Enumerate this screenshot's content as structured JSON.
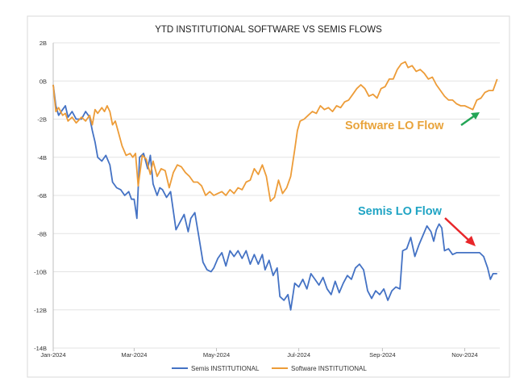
{
  "chart_data": {
    "type": "line",
    "title": "YTD INSTITUTIONAL SOFTWARE VS SEMIS FLOWS",
    "xlabel": "",
    "ylabel": "",
    "x_ticks": [
      "Jan-2024",
      "Mar-2024",
      "May-2024",
      "Jul-2024",
      "Sep-2024",
      "Nov-2024"
    ],
    "y_ticks": [
      "2B",
      "0B",
      "-2B",
      "-4B",
      "-6B",
      "-8B",
      "-10B",
      "-12B",
      "-14B"
    ],
    "ylim": [
      -14,
      2
    ],
    "xlim": [
      "2024-01-01",
      "2024-11-27"
    ],
    "grid": "horizontal",
    "legend_position": "bottom",
    "colors": {
      "semis": "#4472c4",
      "software": "#ed9c38",
      "software_label": "#e8a33b",
      "semis_label": "#20a4c4",
      "red_arrow": "#e8262a",
      "green_arrow": "#23a556"
    },
    "series": [
      {
        "name": "Semis INSTITUTIONAL",
        "key": "semis",
        "points": [
          [
            "2024-01-01",
            -0.2
          ],
          [
            "2024-01-03",
            -1.3
          ],
          [
            "2024-01-05",
            -1.8
          ],
          [
            "2024-01-08",
            -1.5
          ],
          [
            "2024-01-10",
            -1.3
          ],
          [
            "2024-01-12",
            -1.9
          ],
          [
            "2024-01-15",
            -1.6
          ],
          [
            "2024-01-18",
            -2.0
          ],
          [
            "2024-01-22",
            -2.0
          ],
          [
            "2024-01-25",
            -1.6
          ],
          [
            "2024-01-28",
            -1.9
          ],
          [
            "2024-01-30",
            -2.6
          ],
          [
            "2024-02-01",
            -3.2
          ],
          [
            "2024-02-03",
            -4.0
          ],
          [
            "2024-02-06",
            -4.2
          ],
          [
            "2024-02-09",
            -3.9
          ],
          [
            "2024-02-12",
            -4.4
          ],
          [
            "2024-02-14",
            -5.3
          ],
          [
            "2024-02-17",
            -5.6
          ],
          [
            "2024-02-20",
            -5.7
          ],
          [
            "2024-02-23",
            -6.0
          ],
          [
            "2024-02-26",
            -5.8
          ],
          [
            "2024-02-28",
            -6.2
          ],
          [
            "2024-03-01",
            -6.2
          ],
          [
            "2024-03-03",
            -7.2
          ],
          [
            "2024-03-05",
            -4.0
          ],
          [
            "2024-03-08",
            -3.8
          ],
          [
            "2024-03-11",
            -4.6
          ],
          [
            "2024-03-13",
            -3.9
          ],
          [
            "2024-03-15",
            -5.4
          ],
          [
            "2024-03-18",
            -6.0
          ],
          [
            "2024-03-20",
            -5.6
          ],
          [
            "2024-03-22",
            -5.7
          ],
          [
            "2024-03-25",
            -6.1
          ],
          [
            "2024-03-28",
            -5.8
          ],
          [
            "2024-04-01",
            -7.8
          ],
          [
            "2024-04-04",
            -7.4
          ],
          [
            "2024-04-07",
            -7.0
          ],
          [
            "2024-04-10",
            -7.9
          ],
          [
            "2024-04-12",
            -7.2
          ],
          [
            "2024-04-15",
            -6.9
          ],
          [
            "2024-04-18",
            -8.2
          ],
          [
            "2024-04-21",
            -9.5
          ],
          [
            "2024-04-24",
            -9.9
          ],
          [
            "2024-04-27",
            -10.0
          ],
          [
            "2024-04-29",
            -9.8
          ],
          [
            "2024-05-02",
            -9.3
          ],
          [
            "2024-05-05",
            -9.0
          ],
          [
            "2024-05-08",
            -9.7
          ],
          [
            "2024-05-11",
            -8.9
          ],
          [
            "2024-05-14",
            -9.2
          ],
          [
            "2024-05-17",
            -8.9
          ],
          [
            "2024-05-20",
            -9.3
          ],
          [
            "2024-05-23",
            -8.9
          ],
          [
            "2024-05-26",
            -9.6
          ],
          [
            "2024-05-29",
            -9.1
          ],
          [
            "2024-06-01",
            -9.6
          ],
          [
            "2024-06-04",
            -9.1
          ],
          [
            "2024-06-06",
            -9.9
          ],
          [
            "2024-06-09",
            -9.4
          ],
          [
            "2024-06-12",
            -10.2
          ],
          [
            "2024-06-15",
            -9.8
          ],
          [
            "2024-06-17",
            -11.3
          ],
          [
            "2024-06-20",
            -11.5
          ],
          [
            "2024-06-23",
            -11.2
          ],
          [
            "2024-06-25",
            -12.0
          ],
          [
            "2024-06-28",
            -10.6
          ],
          [
            "2024-07-01",
            -10.8
          ],
          [
            "2024-07-04",
            -10.4
          ],
          [
            "2024-07-07",
            -10.9
          ],
          [
            "2024-07-10",
            -10.1
          ],
          [
            "2024-07-13",
            -10.4
          ],
          [
            "2024-07-16",
            -10.7
          ],
          [
            "2024-07-19",
            -10.3
          ],
          [
            "2024-07-22",
            -10.9
          ],
          [
            "2024-07-25",
            -11.2
          ],
          [
            "2024-07-28",
            -10.5
          ],
          [
            "2024-07-31",
            -11.1
          ],
          [
            "2024-08-03",
            -10.6
          ],
          [
            "2024-08-06",
            -10.2
          ],
          [
            "2024-08-09",
            -10.4
          ],
          [
            "2024-08-12",
            -9.8
          ],
          [
            "2024-08-15",
            -9.6
          ],
          [
            "2024-08-18",
            -9.9
          ],
          [
            "2024-08-21",
            -11.0
          ],
          [
            "2024-08-24",
            -11.4
          ],
          [
            "2024-08-27",
            -11.0
          ],
          [
            "2024-08-30",
            -11.2
          ],
          [
            "2024-09-02",
            -10.9
          ],
          [
            "2024-09-05",
            -11.5
          ],
          [
            "2024-09-08",
            -11.0
          ],
          [
            "2024-09-11",
            -10.8
          ],
          [
            "2024-09-14",
            -10.9
          ],
          [
            "2024-09-16",
            -8.9
          ],
          [
            "2024-09-19",
            -8.8
          ],
          [
            "2024-09-22",
            -8.2
          ],
          [
            "2024-09-25",
            -9.2
          ],
          [
            "2024-09-28",
            -8.6
          ],
          [
            "2024-10-01",
            -8.1
          ],
          [
            "2024-10-04",
            -7.6
          ],
          [
            "2024-10-07",
            -7.9
          ],
          [
            "2024-10-09",
            -8.4
          ],
          [
            "2024-10-11",
            -7.8
          ],
          [
            "2024-10-13",
            -7.5
          ],
          [
            "2024-10-15",
            -7.7
          ],
          [
            "2024-10-17",
            -8.9
          ],
          [
            "2024-10-20",
            -8.8
          ],
          [
            "2024-10-23",
            -9.1
          ],
          [
            "2024-10-26",
            -9.0
          ],
          [
            "2024-10-30",
            -9.0
          ],
          [
            "2024-11-05",
            -9.0
          ],
          [
            "2024-11-12",
            -9.0
          ],
          [
            "2024-11-15",
            -9.2
          ],
          [
            "2024-11-18",
            -9.8
          ],
          [
            "2024-11-20",
            -10.4
          ],
          [
            "2024-11-22",
            -10.1
          ],
          [
            "2024-11-25",
            -10.1
          ]
        ]
      },
      {
        "name": "Software INSTITUTIONAL",
        "key": "software",
        "points": [
          [
            "2024-01-01",
            -0.2
          ],
          [
            "2024-01-03",
            -1.6
          ],
          [
            "2024-01-05",
            -1.4
          ],
          [
            "2024-01-08",
            -1.8
          ],
          [
            "2024-01-10",
            -1.7
          ],
          [
            "2024-01-12",
            -2.1
          ],
          [
            "2024-01-15",
            -1.9
          ],
          [
            "2024-01-18",
            -2.2
          ],
          [
            "2024-01-22",
            -1.9
          ],
          [
            "2024-01-25",
            -2.1
          ],
          [
            "2024-01-28",
            -1.8
          ],
          [
            "2024-01-30",
            -2.3
          ],
          [
            "2024-02-01",
            -1.5
          ],
          [
            "2024-02-03",
            -1.7
          ],
          [
            "2024-02-06",
            -1.4
          ],
          [
            "2024-02-08",
            -1.6
          ],
          [
            "2024-02-10",
            -1.3
          ],
          [
            "2024-02-12",
            -1.6
          ],
          [
            "2024-02-14",
            -2.3
          ],
          [
            "2024-02-16",
            -2.1
          ],
          [
            "2024-02-18",
            -2.6
          ],
          [
            "2024-02-21",
            -3.4
          ],
          [
            "2024-02-24",
            -3.9
          ],
          [
            "2024-02-27",
            -3.8
          ],
          [
            "2024-02-29",
            -4.0
          ],
          [
            "2024-03-02",
            -3.8
          ],
          [
            "2024-03-04",
            -5.5
          ],
          [
            "2024-03-07",
            -3.9
          ],
          [
            "2024-03-10",
            -4.1
          ],
          [
            "2024-03-13",
            -4.9
          ],
          [
            "2024-03-15",
            -4.2
          ],
          [
            "2024-03-18",
            -5.0
          ],
          [
            "2024-03-21",
            -4.6
          ],
          [
            "2024-03-24",
            -4.7
          ],
          [
            "2024-03-27",
            -5.6
          ],
          [
            "2024-03-30",
            -4.8
          ],
          [
            "2024-04-02",
            -4.4
          ],
          [
            "2024-04-05",
            -4.5
          ],
          [
            "2024-04-08",
            -4.8
          ],
          [
            "2024-04-11",
            -5.0
          ],
          [
            "2024-04-14",
            -5.3
          ],
          [
            "2024-04-17",
            -5.3
          ],
          [
            "2024-04-20",
            -5.5
          ],
          [
            "2024-04-23",
            -6.0
          ],
          [
            "2024-04-26",
            -5.8
          ],
          [
            "2024-04-29",
            -6.0
          ],
          [
            "2024-05-02",
            -5.9
          ],
          [
            "2024-05-05",
            -5.8
          ],
          [
            "2024-05-08",
            -6.0
          ],
          [
            "2024-05-11",
            -5.7
          ],
          [
            "2024-05-14",
            -5.9
          ],
          [
            "2024-05-17",
            -5.6
          ],
          [
            "2024-05-20",
            -5.7
          ],
          [
            "2024-05-23",
            -5.3
          ],
          [
            "2024-05-26",
            -5.2
          ],
          [
            "2024-05-29",
            -4.6
          ],
          [
            "2024-06-01",
            -4.9
          ],
          [
            "2024-06-04",
            -4.4
          ],
          [
            "2024-06-07",
            -5.0
          ],
          [
            "2024-06-10",
            -6.3
          ],
          [
            "2024-06-13",
            -6.1
          ],
          [
            "2024-06-16",
            -5.2
          ],
          [
            "2024-06-19",
            -5.9
          ],
          [
            "2024-06-22",
            -5.6
          ],
          [
            "2024-06-25",
            -5.0
          ],
          [
            "2024-06-28",
            -3.6
          ],
          [
            "2024-06-30",
            -2.6
          ],
          [
            "2024-07-02",
            -2.1
          ],
          [
            "2024-07-05",
            -2.0
          ],
          [
            "2024-07-08",
            -1.8
          ],
          [
            "2024-07-11",
            -1.6
          ],
          [
            "2024-07-14",
            -1.7
          ],
          [
            "2024-07-17",
            -1.3
          ],
          [
            "2024-07-20",
            -1.5
          ],
          [
            "2024-07-23",
            -1.4
          ],
          [
            "2024-07-26",
            -1.6
          ],
          [
            "2024-07-29",
            -1.3
          ],
          [
            "2024-08-01",
            -1.4
          ],
          [
            "2024-08-04",
            -1.1
          ],
          [
            "2024-08-07",
            -1.0
          ],
          [
            "2024-08-10",
            -0.7
          ],
          [
            "2024-08-13",
            -0.4
          ],
          [
            "2024-08-16",
            -0.2
          ],
          [
            "2024-08-19",
            -0.4
          ],
          [
            "2024-08-22",
            -0.8
          ],
          [
            "2024-08-25",
            -0.7
          ],
          [
            "2024-08-28",
            -0.9
          ],
          [
            "2024-08-31",
            -0.4
          ],
          [
            "2024-09-03",
            -0.3
          ],
          [
            "2024-09-06",
            0.1
          ],
          [
            "2024-09-09",
            0.1
          ],
          [
            "2024-09-12",
            0.6
          ],
          [
            "2024-09-15",
            0.9
          ],
          [
            "2024-09-18",
            1.0
          ],
          [
            "2024-09-20",
            0.7
          ],
          [
            "2024-09-23",
            0.8
          ],
          [
            "2024-09-26",
            0.5
          ],
          [
            "2024-09-29",
            0.6
          ],
          [
            "2024-10-02",
            0.4
          ],
          [
            "2024-10-05",
            0.1
          ],
          [
            "2024-10-08",
            0.2
          ],
          [
            "2024-10-11",
            -0.2
          ],
          [
            "2024-10-14",
            -0.5
          ],
          [
            "2024-10-17",
            -0.8
          ],
          [
            "2024-10-20",
            -1.0
          ],
          [
            "2024-10-23",
            -1.0
          ],
          [
            "2024-10-26",
            -1.2
          ],
          [
            "2024-10-29",
            -1.3
          ],
          [
            "2024-11-01",
            -1.3
          ],
          [
            "2024-11-04",
            -1.4
          ],
          [
            "2024-11-07",
            -1.5
          ],
          [
            "2024-11-10",
            -1.0
          ],
          [
            "2024-11-13",
            -0.9
          ],
          [
            "2024-11-16",
            -0.6
          ],
          [
            "2024-11-19",
            -0.5
          ],
          [
            "2024-11-22",
            -0.5
          ],
          [
            "2024-11-25",
            0.1
          ]
        ]
      }
    ],
    "annotations": [
      {
        "key": "software",
        "text": "Software LO Flow"
      },
      {
        "key": "semis",
        "text": "Semis LO Flow"
      }
    ],
    "legend": [
      {
        "label": "Semis INSTITUTIONAL",
        "key": "semis"
      },
      {
        "label": "Software INSTITUTIONAL",
        "key": "software"
      }
    ]
  }
}
